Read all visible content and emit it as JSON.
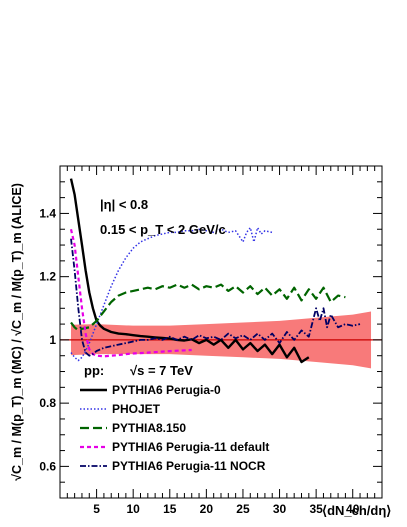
{
  "chart_data": {
    "type": "line",
    "xlabel": "⟨dN_ch/dη⟩",
    "ylabel": "√C_m / M(p_T)_m (MC)   /   √C_m / M(p_T)_m (ALICE)",
    "xlim": [
      0,
      44
    ],
    "ylim": [
      0.5,
      1.55
    ],
    "x_ticks": [
      5,
      10,
      15,
      20,
      25,
      30,
      35,
      40
    ],
    "y_ticks": [
      0.6,
      0.8,
      1,
      1.2,
      1.4
    ],
    "y_tick_labels": [
      "0.6",
      "0.8",
      "1",
      "1.2",
      "1.4"
    ],
    "grid": false,
    "reference_line": {
      "y": 1.0,
      "color": "#c80000"
    },
    "annotations": {
      "eta_cut": "|η| < 0.8",
      "pt_cut": "0.15 < p_T < 2 GeV/c",
      "system": "pp:",
      "energy": "√s = 7 TeV"
    },
    "legend_position": "bottom-left",
    "systematic_band": {
      "color": "#f87a7a",
      "x": [
        1.5,
        5,
        10,
        15,
        20,
        25,
        30,
        35,
        40,
        42.5
      ],
      "upper": [
        1.048,
        1.05,
        1.045,
        1.045,
        1.05,
        1.055,
        1.06,
        1.07,
        1.08,
        1.09
      ],
      "lower": [
        0.952,
        0.955,
        0.955,
        0.955,
        0.95,
        0.945,
        0.94,
        0.93,
        0.92,
        0.91
      ]
    },
    "series": [
      {
        "name": "PYTHIA6 Perugia-0",
        "color": "#000000",
        "dash": "solid",
        "width": 2.4,
        "x": [
          1.5,
          2,
          2.5,
          3,
          3.5,
          4,
          4.5,
          5,
          5.5,
          6,
          7,
          8,
          9,
          10,
          11,
          12,
          13,
          14,
          15,
          16,
          17,
          18,
          19,
          20,
          21,
          22,
          23,
          24,
          25,
          26,
          27,
          28,
          29,
          30,
          31,
          32,
          33,
          34
        ],
        "y": [
          1.51,
          1.46,
          1.38,
          1.3,
          1.22,
          1.15,
          1.1,
          1.06,
          1.045,
          1.035,
          1.025,
          1.02,
          1.018,
          1.015,
          1.012,
          1.01,
          1.008,
          1.006,
          1.004,
          1.0,
          0.998,
          1.002,
          0.99,
          1.0,
          0.985,
          1.0,
          0.975,
          1.0,
          0.97,
          0.99,
          0.965,
          0.985,
          0.955,
          0.985,
          0.945,
          0.975,
          0.93,
          0.945
        ]
      },
      {
        "name": "PHOJET",
        "color": "#3232e6",
        "dash": "1.5,2",
        "width": 1.5,
        "x": [
          1.5,
          2,
          2.5,
          3,
          3.5,
          4,
          5,
          6,
          7,
          8,
          9,
          10,
          11,
          12,
          13,
          14,
          15,
          16,
          17,
          18,
          19,
          20,
          21,
          22,
          23,
          24,
          25,
          25.5,
          26,
          26.5,
          27,
          27.5,
          28,
          29
        ],
        "y": [
          0.96,
          0.945,
          0.935,
          0.945,
          0.965,
          0.99,
          1.05,
          1.11,
          1.17,
          1.22,
          1.26,
          1.29,
          1.31,
          1.32,
          1.33,
          1.335,
          1.34,
          1.34,
          1.345,
          1.345,
          1.35,
          1.345,
          1.34,
          1.35,
          1.34,
          1.345,
          1.31,
          1.34,
          1.355,
          1.31,
          1.355,
          1.335,
          1.345,
          1.34
        ]
      },
      {
        "name": "PYTHIA8.150",
        "color": "#006400",
        "dash": "9,4",
        "width": 2.2,
        "x": [
          1.5,
          2,
          2.5,
          3,
          4,
          5,
          6,
          7,
          8,
          9,
          10,
          11,
          12,
          13,
          14,
          15,
          16,
          17,
          18,
          19,
          20,
          21,
          22,
          23,
          24,
          25,
          26,
          27,
          28,
          29,
          30,
          31,
          32,
          33,
          34,
          35,
          36,
          37,
          38,
          39
        ],
        "y": [
          1.055,
          1.04,
          1.03,
          1.035,
          1.04,
          1.06,
          1.09,
          1.12,
          1.14,
          1.15,
          1.155,
          1.16,
          1.165,
          1.16,
          1.17,
          1.165,
          1.175,
          1.165,
          1.175,
          1.16,
          1.17,
          1.165,
          1.175,
          1.155,
          1.17,
          1.15,
          1.17,
          1.145,
          1.165,
          1.14,
          1.16,
          1.13,
          1.165,
          1.125,
          1.16,
          1.13,
          1.165,
          1.12,
          1.14,
          1.135
        ]
      },
      {
        "name": "PYTHIA6 Perugia-11 default",
        "color": "#e600e6",
        "dash": "4,3",
        "width": 2.2,
        "x": [
          1.5,
          2,
          2.5,
          3,
          3.5,
          4,
          4.5,
          5,
          6,
          7,
          8,
          9,
          10,
          12,
          14,
          16,
          18
        ],
        "y": [
          1.35,
          1.3,
          1.2,
          1.1,
          1.02,
          0.97,
          0.955,
          0.95,
          0.948,
          0.95,
          0.952,
          0.955,
          0.957,
          0.96,
          0.963,
          0.966,
          0.968
        ]
      },
      {
        "name": "PYTHIA6 Perugia-11 NOCR",
        "color": "#000064",
        "dash": "6,2,1.5,2",
        "width": 1.8,
        "x": [
          1.5,
          2,
          2.5,
          3,
          3.5,
          4,
          4.5,
          5,
          6,
          7,
          8,
          9,
          10,
          11,
          12,
          13,
          14,
          15,
          16,
          17,
          18,
          19,
          20,
          21,
          22,
          23,
          24,
          25,
          26,
          27,
          28,
          29,
          30,
          31,
          32,
          33,
          34,
          35,
          35.5,
          36,
          36.5,
          37,
          38,
          39,
          40,
          41
        ],
        "y": [
          1.32,
          1.22,
          1.1,
          1.0,
          0.96,
          0.95,
          0.955,
          0.965,
          0.975,
          0.98,
          0.985,
          0.99,
          0.995,
          1.0,
          1.0,
          1.005,
          1.0,
          1.01,
          1.0,
          1.01,
          1.0,
          1.015,
          1.005,
          1.01,
          1.0,
          1.02,
          1.005,
          1.015,
          1.0,
          1.02,
          1.0,
          1.02,
          0.99,
          1.025,
          1.0,
          1.03,
          1.01,
          1.1,
          1.06,
          1.1,
          1.04,
          1.08,
          1.04,
          1.05,
          1.045,
          1.05
        ]
      }
    ]
  }
}
